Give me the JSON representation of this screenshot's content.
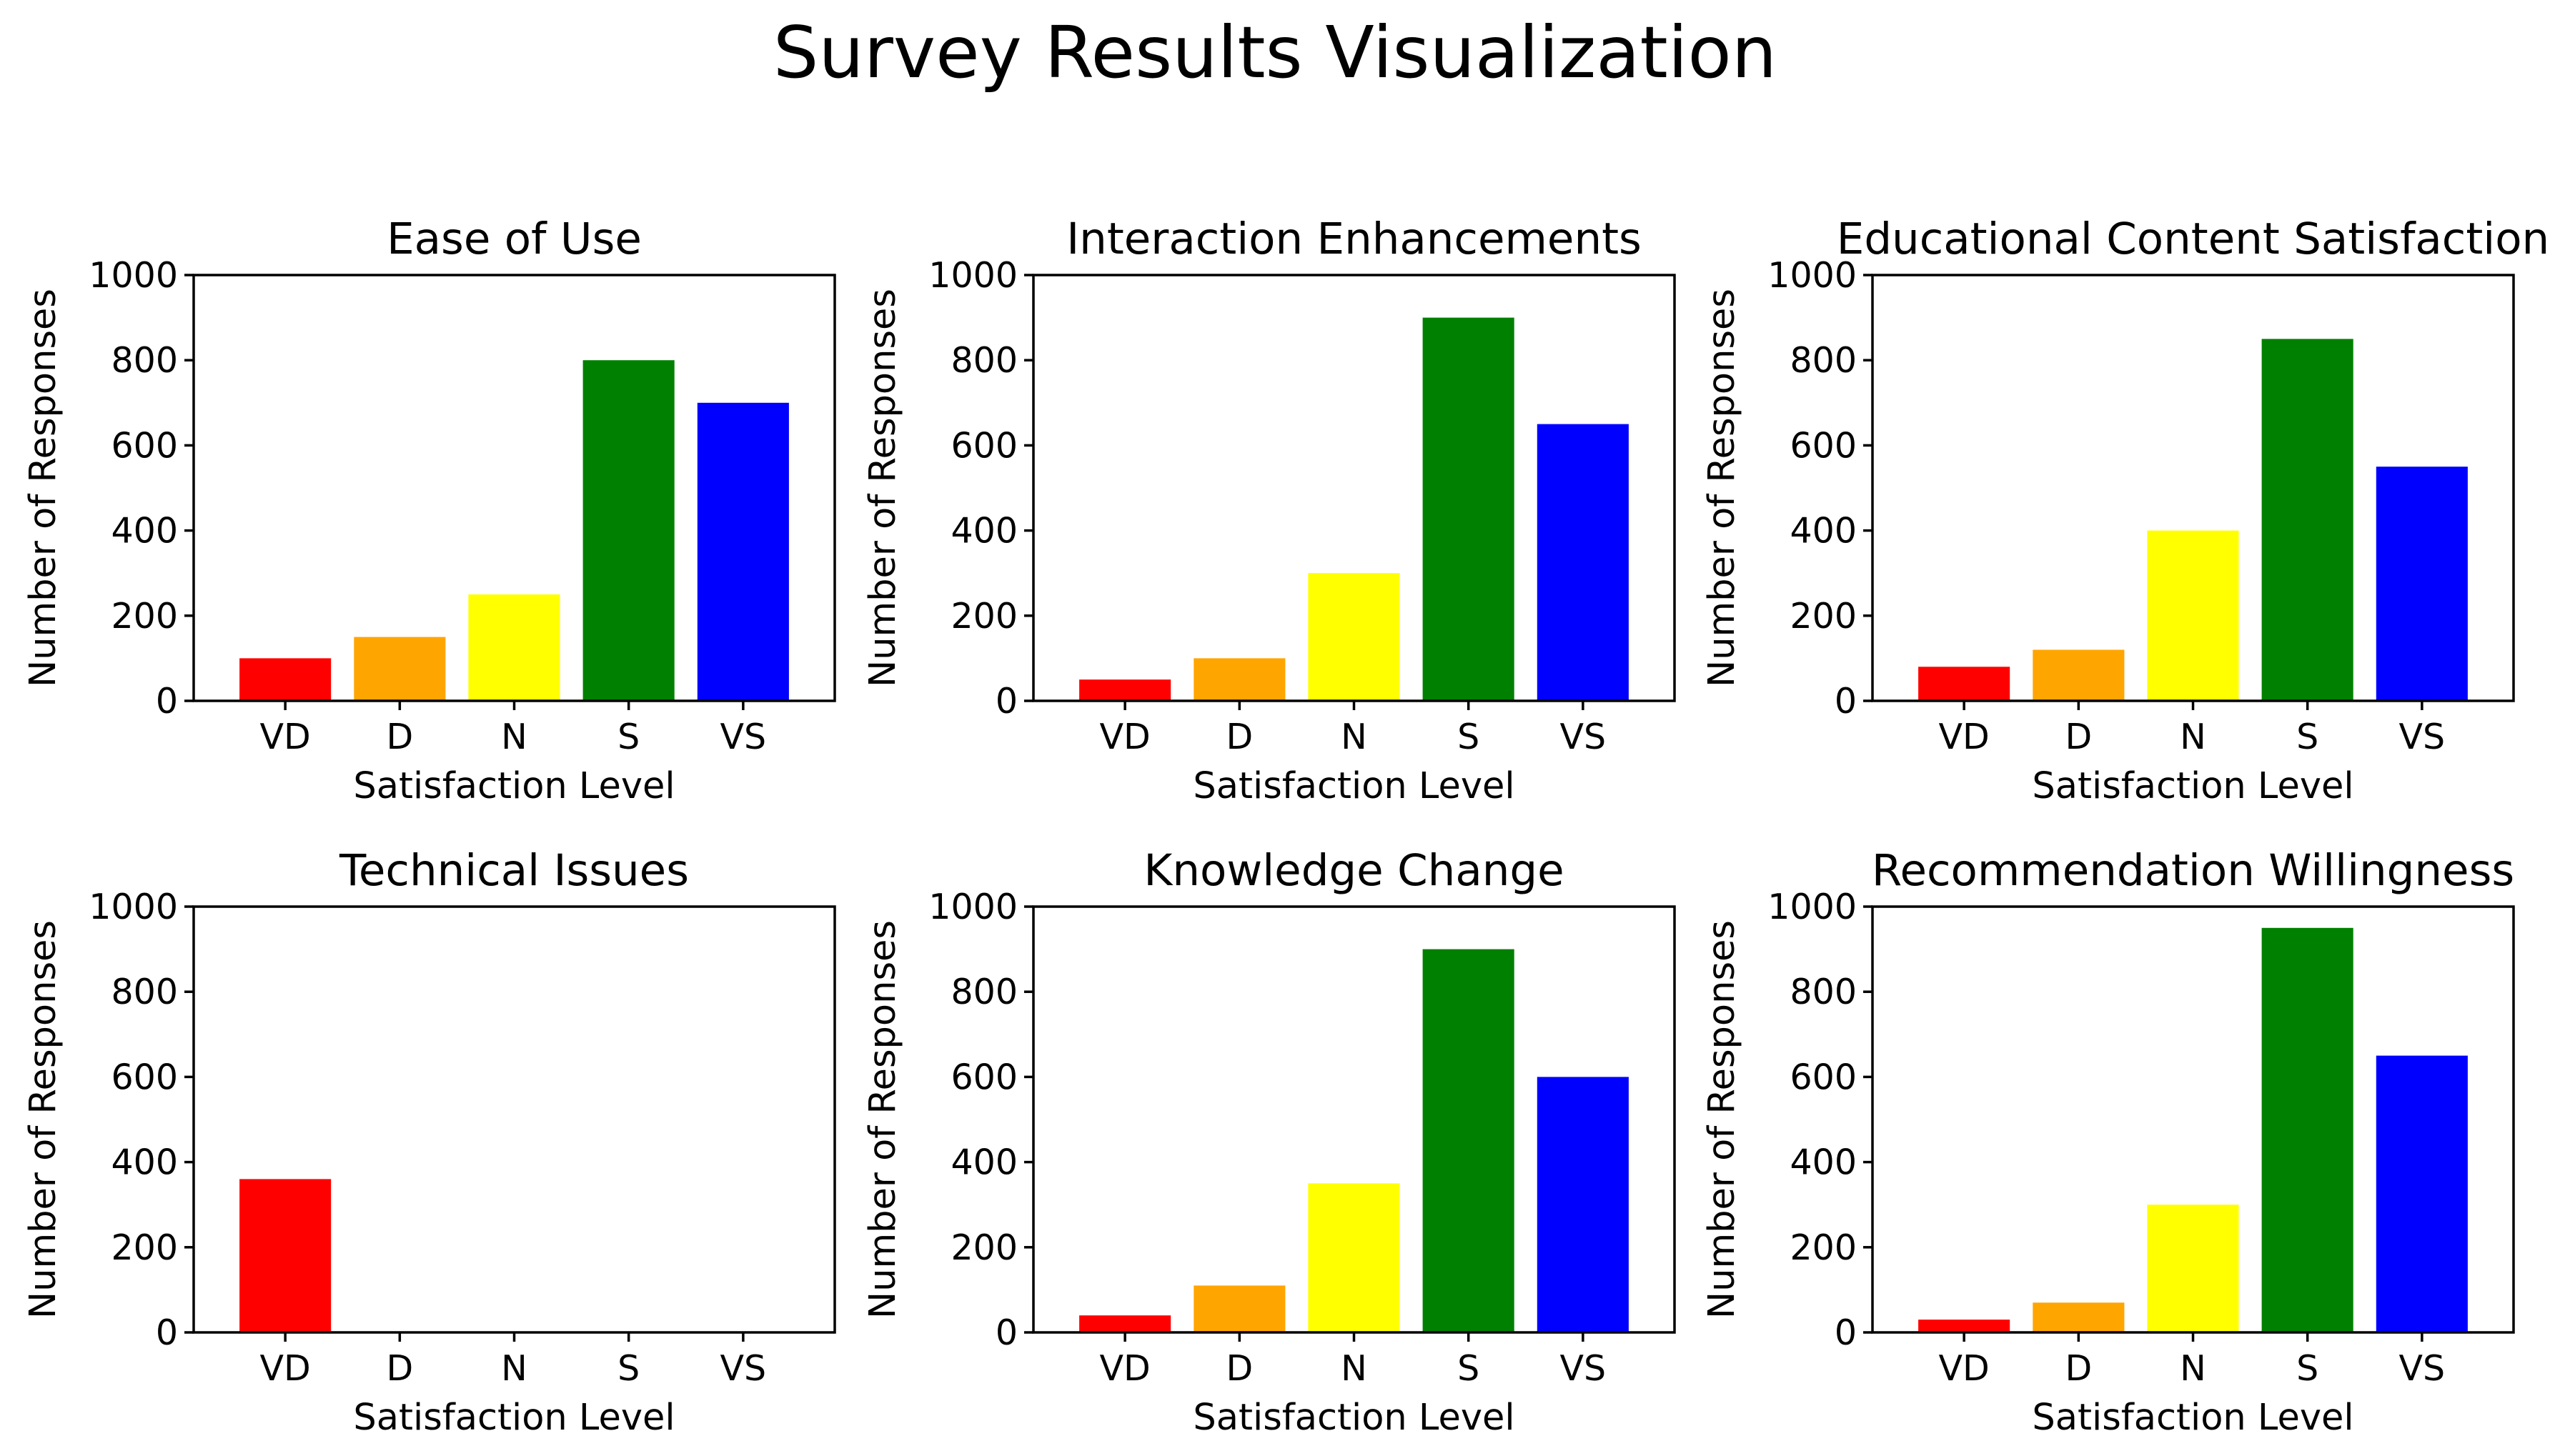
{
  "figure_title": "Survey Results Visualization",
  "chart_data": [
    {
      "type": "bar",
      "title": "Ease of Use",
      "xlabel": "Satisfaction Level",
      "ylabel": "Number of Responses",
      "categories": [
        "VD",
        "D",
        "N",
        "S",
        "VS"
      ],
      "values": [
        100,
        150,
        250,
        800,
        700
      ],
      "colors": [
        "#ff0000",
        "#ffa500",
        "#ffff00",
        "#008000",
        "#0000ff"
      ],
      "ylim": [
        0,
        1000
      ],
      "yticks": [
        0,
        200,
        400,
        600,
        800,
        1000
      ]
    },
    {
      "type": "bar",
      "title": "Interaction Enhancements",
      "xlabel": "Satisfaction Level",
      "ylabel": "Number of Responses",
      "categories": [
        "VD",
        "D",
        "N",
        "S",
        "VS"
      ],
      "values": [
        50,
        100,
        300,
        900,
        650
      ],
      "colors": [
        "#ff0000",
        "#ffa500",
        "#ffff00",
        "#008000",
        "#0000ff"
      ],
      "ylim": [
        0,
        1000
      ],
      "yticks": [
        0,
        200,
        400,
        600,
        800,
        1000
      ]
    },
    {
      "type": "bar",
      "title": "Educational Content Satisfaction",
      "xlabel": "Satisfaction Level",
      "ylabel": "Number of Responses",
      "categories": [
        "VD",
        "D",
        "N",
        "S",
        "VS"
      ],
      "values": [
        80,
        120,
        400,
        850,
        550
      ],
      "colors": [
        "#ff0000",
        "#ffa500",
        "#ffff00",
        "#008000",
        "#0000ff"
      ],
      "ylim": [
        0,
        1000
      ],
      "yticks": [
        0,
        200,
        400,
        600,
        800,
        1000
      ]
    },
    {
      "type": "bar",
      "title": "Technical Issues",
      "xlabel": "Satisfaction Level",
      "ylabel": "Number of Responses",
      "categories": [
        "VD",
        "D",
        "N",
        "S",
        "VS"
      ],
      "values": [
        360,
        0,
        0,
        0,
        0
      ],
      "colors": [
        "#ff0000",
        "#ffa500",
        "#ffff00",
        "#008000",
        "#0000ff"
      ],
      "ylim": [
        0,
        1000
      ],
      "yticks": [
        0,
        200,
        400,
        600,
        800,
        1000
      ]
    },
    {
      "type": "bar",
      "title": "Knowledge Change",
      "xlabel": "Satisfaction Level",
      "ylabel": "Number of Responses",
      "categories": [
        "VD",
        "D",
        "N",
        "S",
        "VS"
      ],
      "values": [
        40,
        110,
        350,
        900,
        600
      ],
      "colors": [
        "#ff0000",
        "#ffa500",
        "#ffff00",
        "#008000",
        "#0000ff"
      ],
      "ylim": [
        0,
        1000
      ],
      "yticks": [
        0,
        200,
        400,
        600,
        800,
        1000
      ]
    },
    {
      "type": "bar",
      "title": "Recommendation Willingness",
      "xlabel": "Satisfaction Level",
      "ylabel": "Number of Responses",
      "categories": [
        "VD",
        "D",
        "N",
        "S",
        "VS"
      ],
      "values": [
        30,
        70,
        300,
        950,
        650
      ],
      "colors": [
        "#ff0000",
        "#ffa500",
        "#ffff00",
        "#008000",
        "#0000ff"
      ],
      "ylim": [
        0,
        1000
      ],
      "yticks": [
        0,
        200,
        400,
        600,
        800,
        1000
      ]
    }
  ]
}
